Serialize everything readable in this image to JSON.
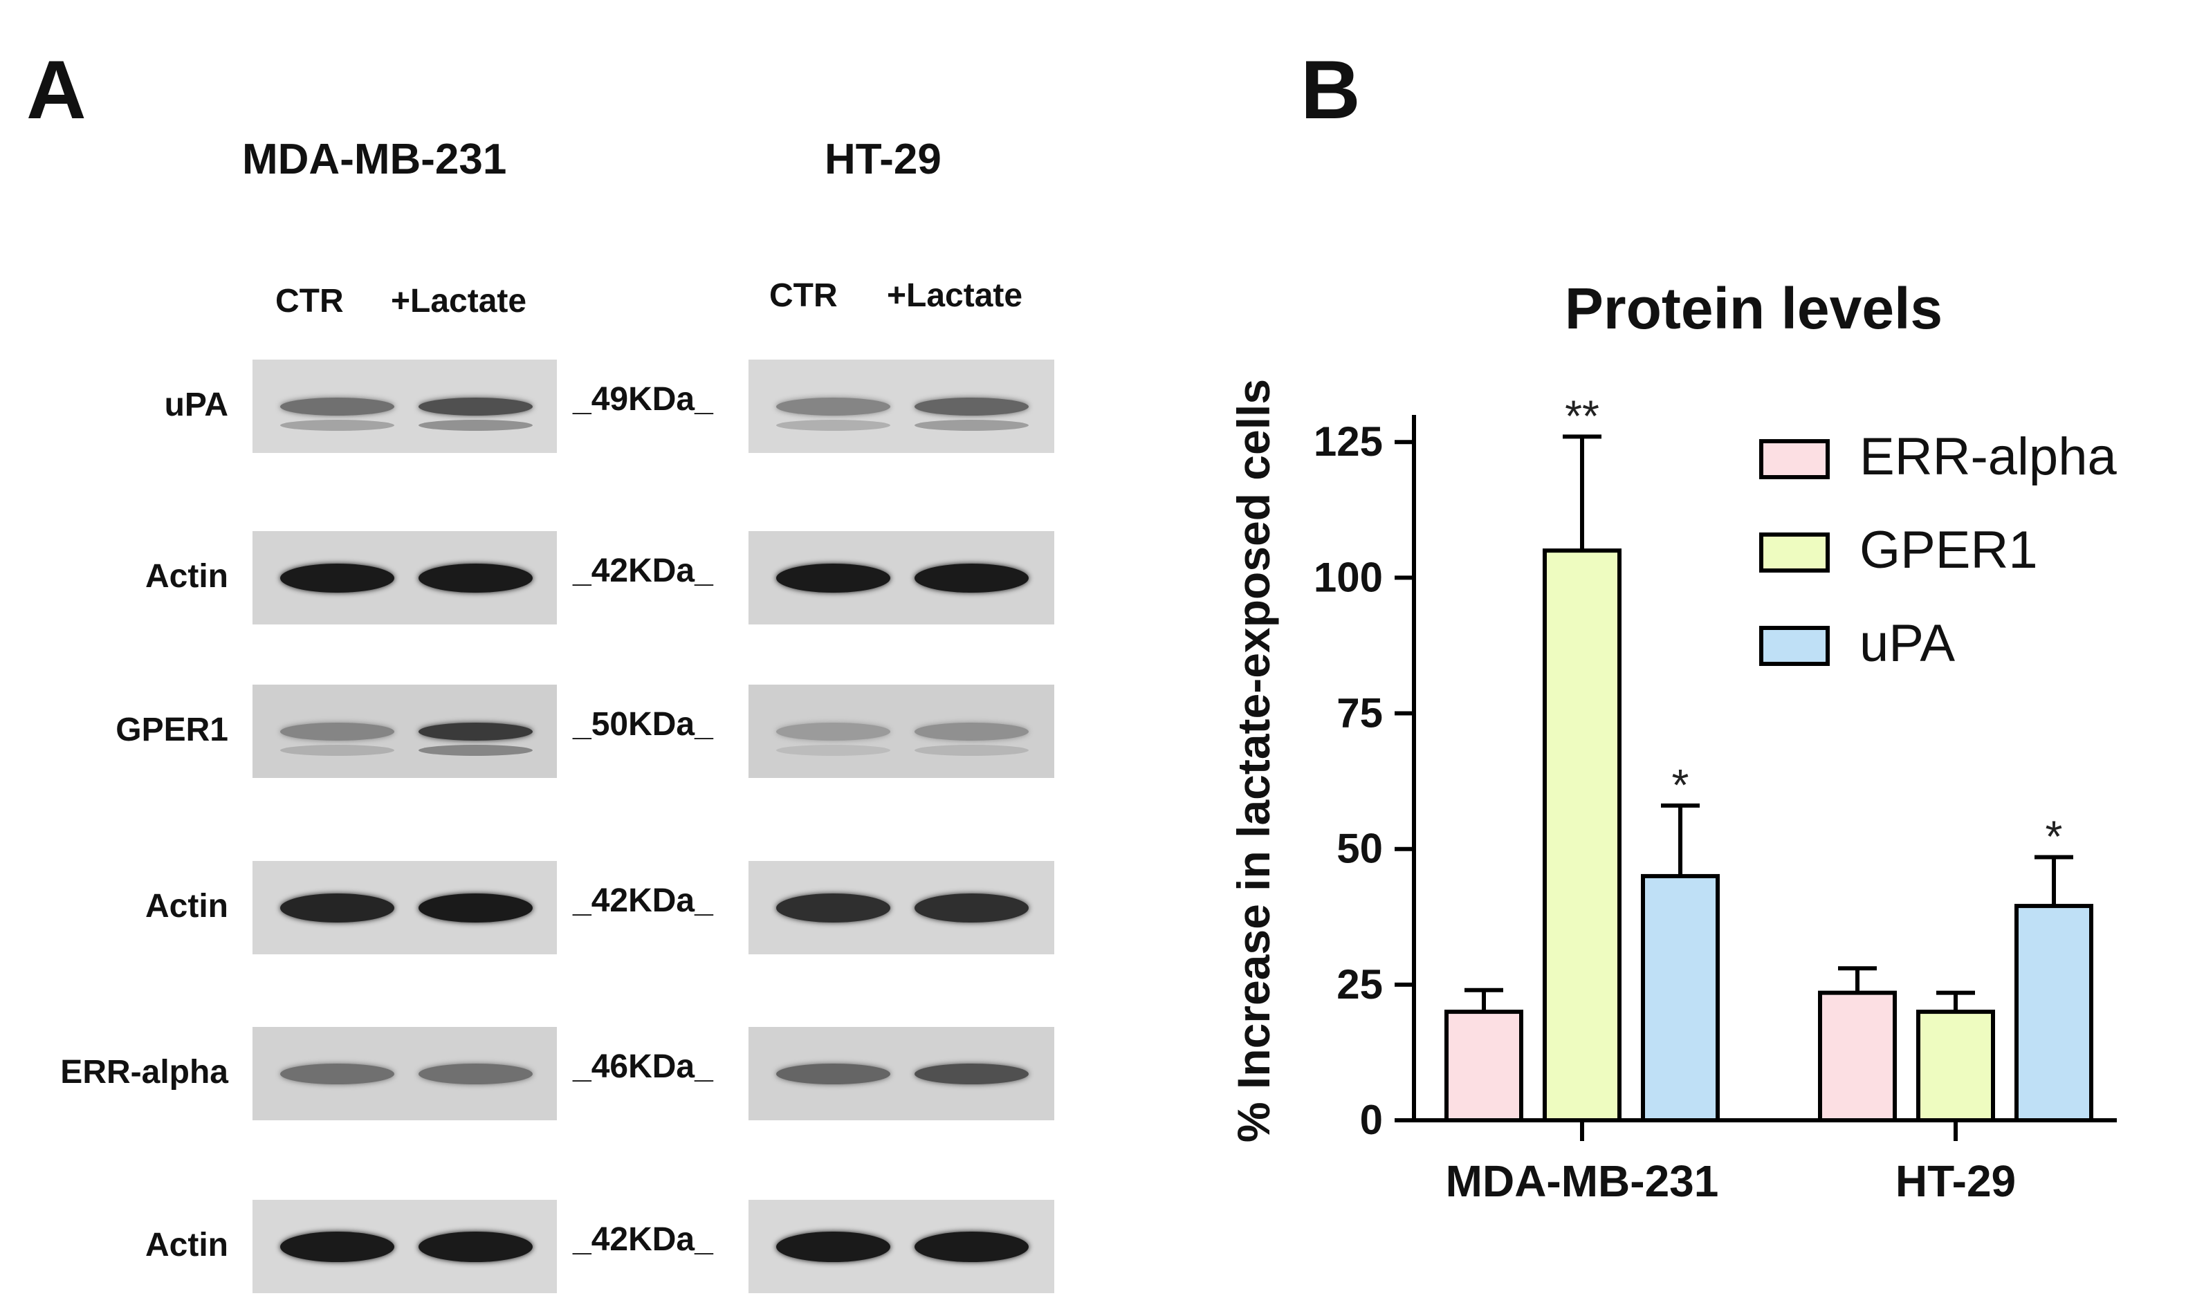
{
  "panels": {
    "a_letter": "A",
    "b_letter": "B"
  },
  "western_blot": {
    "cell_lines": [
      "MDA-MB-231",
      "HT-29"
    ],
    "lane_labels": [
      {
        "ctr": "CTR",
        "lactate": "+Lactate"
      },
      {
        "ctr": "CTR",
        "lactate": "+Lactate"
      }
    ],
    "rows": [
      {
        "label": "uPA",
        "kda": "_49KDa_"
      },
      {
        "label": "Actin",
        "kda": "_42KDa_"
      },
      {
        "label": "GPER1",
        "kda": "_50KDa_"
      },
      {
        "label": "Actin",
        "kda": "_42KDa_"
      },
      {
        "label": "ERR-alpha",
        "kda": "_46KDa_"
      },
      {
        "label": "Actin",
        "kda": "_42KDa_"
      }
    ]
  },
  "chart_data": {
    "type": "bar",
    "title": "Protein levels",
    "ylabel": "% Increase in lactate-exposed cells",
    "xlabel": "",
    "categories": [
      "MDA-MB-231",
      "HT-29"
    ],
    "ylim": [
      0,
      130
    ],
    "yticks": [
      "0",
      "25",
      "50",
      "75",
      "100",
      "125"
    ],
    "legend_position": "top-right",
    "grid": false,
    "series": [
      {
        "name": "ERR-alpha",
        "color": "#fcdfe3",
        "values": [
          20,
          23.5
        ],
        "errors": [
          4,
          4.5
        ],
        "annotations": [
          "",
          ""
        ]
      },
      {
        "name": "GPER1",
        "color": "#eefcc0",
        "values": [
          105,
          20
        ],
        "errors": [
          21,
          3.5
        ],
        "annotations": [
          "**",
          ""
        ]
      },
      {
        "name": "uPA",
        "color": "#bfe0f6",
        "values": [
          45,
          39.5
        ],
        "errors": [
          13,
          9
        ],
        "annotations": [
          "*",
          "*"
        ]
      }
    ]
  }
}
